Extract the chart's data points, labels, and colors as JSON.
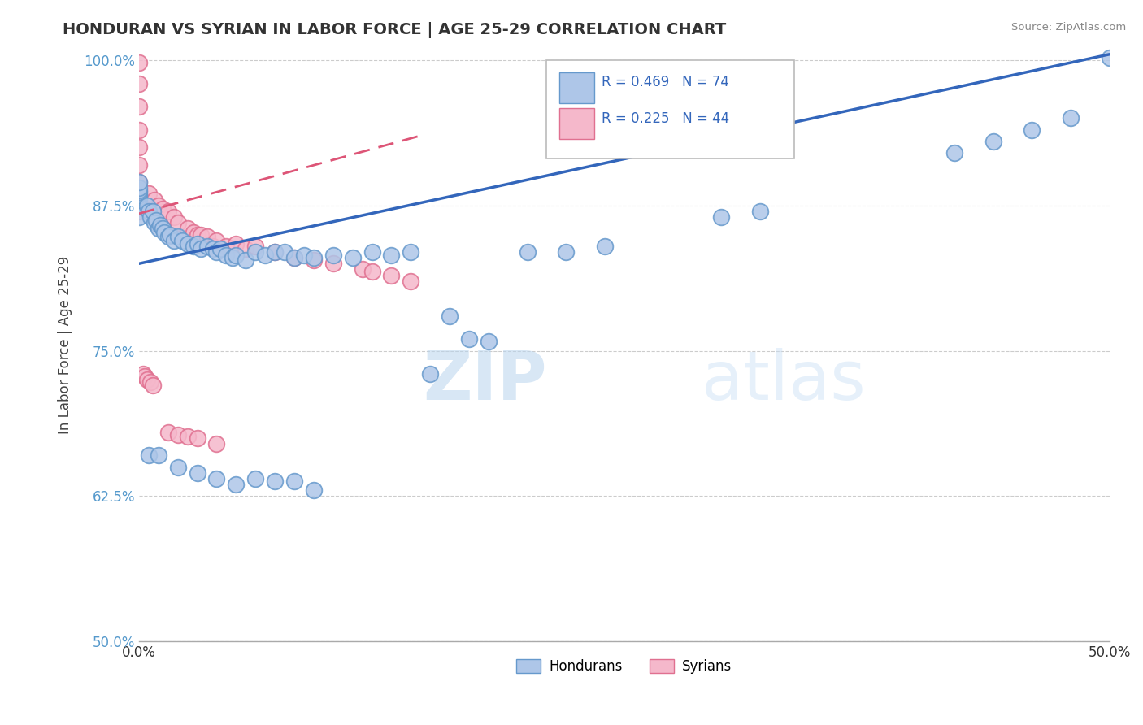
{
  "title": "HONDURAN VS SYRIAN IN LABOR FORCE | AGE 25-29 CORRELATION CHART",
  "source_text": "Source: ZipAtlas.com",
  "ylabel": "In Labor Force | Age 25-29",
  "xlim": [
    0.0,
    0.5
  ],
  "ylim": [
    0.5,
    1.01
  ],
  "xticks": [
    0.0,
    0.1,
    0.2,
    0.3,
    0.4,
    0.5
  ],
  "xticklabels": [
    "0.0%",
    "",
    "",
    "",
    "",
    "50.0%"
  ],
  "yticks": [
    0.5,
    0.625,
    0.75,
    0.875,
    1.0
  ],
  "yticklabels": [
    "50.0%",
    "62.5%",
    "75.0%",
    "87.5%",
    "100.0%"
  ],
  "honduran_color": "#aec6e8",
  "syrian_color": "#f5b8cb",
  "honduran_edge": "#6699cc",
  "syrian_edge": "#e07090",
  "trend_honduran_color": "#3366bb",
  "trend_syrian_color": "#dd5577",
  "legend_honduran_label": "Hondurans",
  "legend_syrian_label": "Syrians",
  "R_honduran": 0.469,
  "N_honduran": 74,
  "R_syrian": 0.225,
  "N_syrian": 44,
  "watermark": "ZIPatlas",
  "honduran_trend_x0": 0.0,
  "honduran_trend_y0": 0.825,
  "honduran_trend_x1": 0.5,
  "honduran_trend_y1": 1.005,
  "syrian_trend_x0": 0.0,
  "syrian_trend_y0": 0.868,
  "syrian_trend_x1": 0.145,
  "syrian_trend_y1": 0.935,
  "honduran_x": [
    0.0,
    0.0,
    0.0,
    0.0,
    0.0,
    0.0,
    0.0,
    0.0,
    0.0,
    0.0,
    0.004,
    0.005,
    0.006,
    0.007,
    0.008,
    0.009,
    0.01,
    0.011,
    0.012,
    0.013,
    0.015,
    0.016,
    0.018,
    0.02,
    0.022,
    0.025,
    0.028,
    0.03,
    0.032,
    0.035,
    0.038,
    0.04,
    0.042,
    0.045,
    0.048,
    0.05,
    0.055,
    0.06,
    0.065,
    0.07,
    0.075,
    0.08,
    0.085,
    0.09,
    0.1,
    0.11,
    0.12,
    0.13,
    0.14,
    0.15,
    0.16,
    0.17,
    0.18,
    0.2,
    0.22,
    0.24,
    0.3,
    0.32,
    0.42,
    0.44,
    0.46,
    0.48,
    0.5,
    0.005,
    0.01,
    0.02,
    0.03,
    0.04,
    0.05,
    0.06,
    0.07,
    0.08,
    0.09
  ],
  "honduran_y": [
    0.865,
    0.875,
    0.88,
    0.882,
    0.884,
    0.885,
    0.887,
    0.888,
    0.89,
    0.895,
    0.875,
    0.87,
    0.865,
    0.87,
    0.86,
    0.862,
    0.855,
    0.858,
    0.855,
    0.852,
    0.848,
    0.85,
    0.845,
    0.848,
    0.845,
    0.842,
    0.84,
    0.842,
    0.838,
    0.84,
    0.838,
    0.835,
    0.838,
    0.832,
    0.83,
    0.832,
    0.828,
    0.835,
    0.832,
    0.835,
    0.835,
    0.83,
    0.832,
    0.83,
    0.832,
    0.83,
    0.835,
    0.832,
    0.835,
    0.73,
    0.78,
    0.76,
    0.758,
    0.835,
    0.835,
    0.84,
    0.865,
    0.87,
    0.92,
    0.93,
    0.94,
    0.95,
    1.002,
    0.66,
    0.66,
    0.65,
    0.645,
    0.64,
    0.635,
    0.64,
    0.638,
    0.638,
    0.63
  ],
  "syrian_x": [
    0.0,
    0.0,
    0.0,
    0.0,
    0.0,
    0.0,
    0.0,
    0.0,
    0.005,
    0.008,
    0.01,
    0.012,
    0.015,
    0.018,
    0.02,
    0.025,
    0.028,
    0.03,
    0.032,
    0.035,
    0.038,
    0.04,
    0.045,
    0.05,
    0.055,
    0.06,
    0.07,
    0.08,
    0.09,
    0.1,
    0.115,
    0.12,
    0.13,
    0.14,
    0.002,
    0.003,
    0.004,
    0.006,
    0.007,
    0.015,
    0.02,
    0.025,
    0.03,
    0.04
  ],
  "syrian_y": [
    0.87,
    0.895,
    0.91,
    0.925,
    0.94,
    0.96,
    0.98,
    0.998,
    0.885,
    0.88,
    0.875,
    0.872,
    0.87,
    0.865,
    0.86,
    0.855,
    0.852,
    0.85,
    0.85,
    0.848,
    0.84,
    0.845,
    0.84,
    0.842,
    0.838,
    0.84,
    0.835,
    0.83,
    0.828,
    0.825,
    0.82,
    0.818,
    0.815,
    0.81,
    0.73,
    0.728,
    0.725,
    0.723,
    0.72,
    0.68,
    0.678,
    0.676,
    0.675,
    0.67
  ]
}
